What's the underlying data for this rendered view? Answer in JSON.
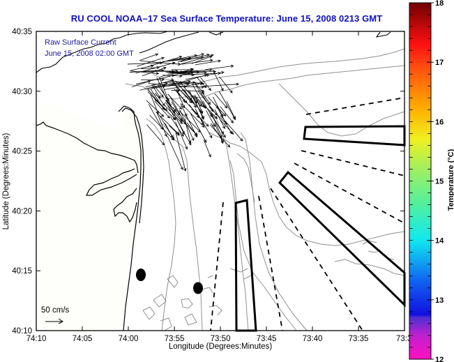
{
  "title": "RU COOL  NOAA–17  Sea Surface Temperature:  June 15, 2008 0213 GMT",
  "annotation": {
    "line1": "Raw Surface Current",
    "line2": "June 15, 2008 02:00 GMT"
  },
  "scale": {
    "label": "50 cm/s",
    "icon": "arrow-right-icon"
  },
  "axes": {
    "x_label": "Longitude (Degrees:Minutes)",
    "y_label": "Latitude (Degrees:Minutes)",
    "x_ticks": [
      "74:10",
      "74:05",
      "74:00",
      "73:55",
      "73:50",
      "73:45",
      "73:40",
      "73:35",
      "73:3"
    ],
    "y_ticks": [
      "40:35",
      "40:30",
      "40:25",
      "40:20",
      "40:15",
      "40:10"
    ]
  },
  "colorbar": {
    "label": "Temperature (°C)",
    "min": 12,
    "max": 18,
    "ticks": [
      "18",
      "17",
      "16",
      "15",
      "14",
      "13",
      "12"
    ],
    "stops": [
      {
        "value": 12.0,
        "color": "#ff10c0"
      },
      {
        "value": 12.4,
        "color": "#c020d0"
      },
      {
        "value": 12.7,
        "color": "#5030d0"
      },
      {
        "value": 12.75,
        "color": "#1010e0"
      },
      {
        "value": 13.3,
        "color": "#1060f0"
      },
      {
        "value": 14.0,
        "color": "#10e8f0"
      },
      {
        "value": 14.6,
        "color": "#50f0a0"
      },
      {
        "value": 15.2,
        "color": "#a0f060"
      },
      {
        "value": 15.7,
        "color": "#f0f020"
      },
      {
        "value": 16.2,
        "color": "#ffb000"
      },
      {
        "value": 16.9,
        "color": "#ff5010"
      },
      {
        "value": 17.3,
        "color": "#ff1010"
      },
      {
        "value": 18.0,
        "color": "#700000"
      }
    ]
  },
  "map_features": {
    "buoys": 2,
    "restricted_zones": 3,
    "shipping_lanes_dashed": 7,
    "current_vector_count_approx": 150
  },
  "colors": {
    "title": "#1010c0",
    "annotation": "#1a1aa0",
    "coastline": "#000000",
    "bathymetry": "#909090",
    "land": "#fefefa"
  }
}
